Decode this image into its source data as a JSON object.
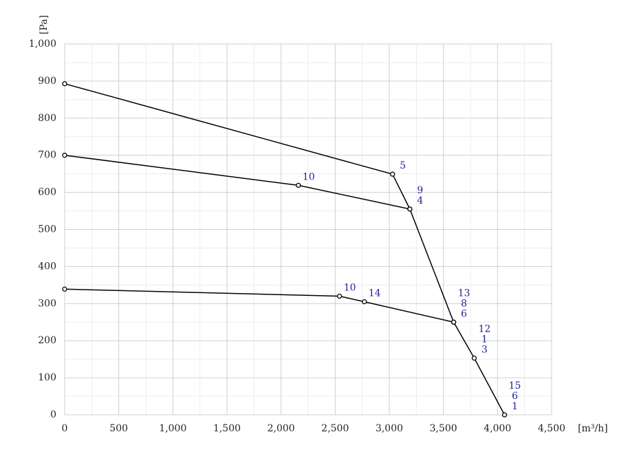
{
  "chart_data": {
    "type": "line",
    "x_label": "[m³/h]",
    "y_label": "[Pa]",
    "xlim": [
      0,
      4500
    ],
    "ylim": [
      0,
      1000
    ],
    "xticks": [
      0,
      500,
      {
        "value": 1000,
        "label": "1,000"
      },
      {
        "value": 1500,
        "label": "1,500"
      },
      {
        "value": 2000,
        "label": "2,000"
      },
      {
        "value": 2500,
        "label": "2,500"
      },
      {
        "value": 3000,
        "label": "3,000"
      },
      {
        "value": 3500,
        "label": "3,500"
      },
      {
        "value": 4000,
        "label": "4,000"
      },
      {
        "value": 4500,
        "label": "4,500"
      }
    ],
    "yticks": [
      0,
      100,
      200,
      300,
      400,
      500,
      600,
      700,
      800,
      900,
      {
        "value": 1000,
        "label": "1,000"
      }
    ],
    "grid": true,
    "minor_grid": true,
    "label_color": "#1f1f9e",
    "series": [
      {
        "color": "#000000",
        "x": [
          0,
          3030,
          3190,
          3595,
          3785,
          4065
        ],
        "values": [
          893,
          649,
          555,
          250,
          153,
          0
        ],
        "point_labels": [
          null,
          [
            "5"
          ],
          [
            "9",
            "4"
          ],
          [
            "13",
            "8",
            "6"
          ],
          [
            "12",
            "1",
            "3"
          ],
          [
            "15",
            "6",
            "1"
          ]
        ]
      },
      {
        "color": "#000000",
        "x": [
          0,
          2160,
          3190
        ],
        "values": [
          700,
          619,
          555
        ],
        "point_labels": [
          null,
          [
            "10"
          ],
          null
        ]
      },
      {
        "color": "#000000",
        "x": [
          0,
          2540,
          2770,
          3595
        ],
        "values": [
          339,
          320,
          305,
          250
        ],
        "point_labels": [
          null,
          [
            "10"
          ],
          [
            "14"
          ],
          null
        ]
      }
    ]
  }
}
